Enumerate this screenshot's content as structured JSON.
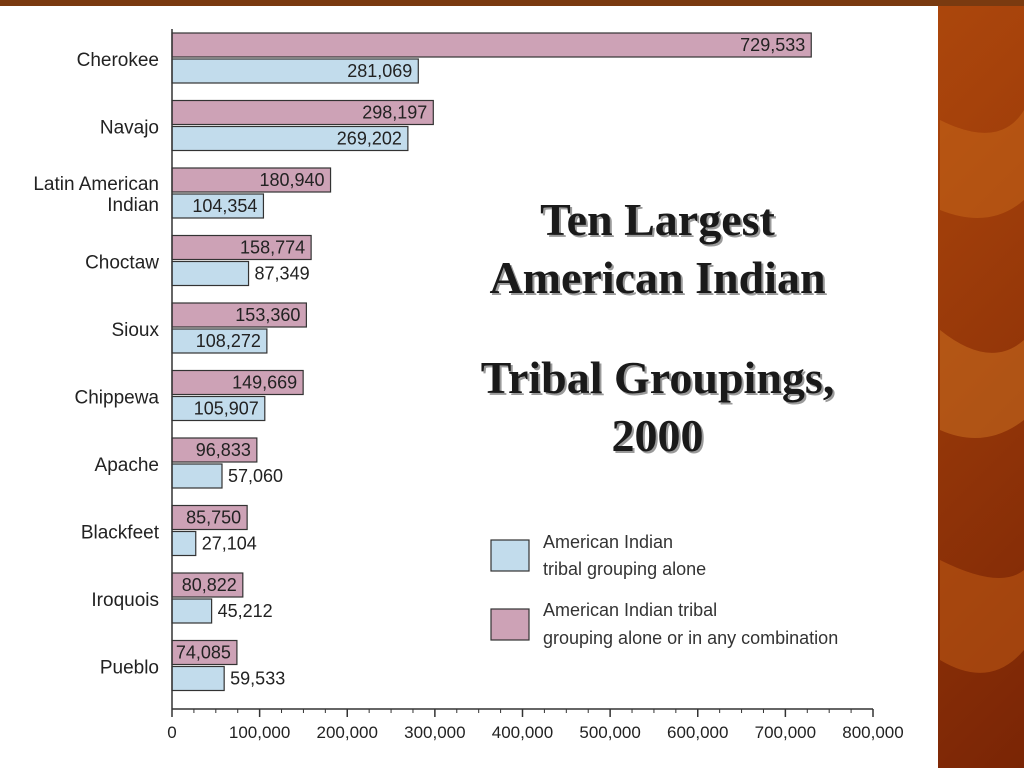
{
  "title": {
    "line1": "Ten Largest",
    "line2": "American Indian",
    "line3": "Tribal Groupings,",
    "line4": "2000"
  },
  "colors": {
    "alone": "#c2dcec",
    "combination": "#cda2b6",
    "stroke": "#333333",
    "background_accent": "#b9520f"
  },
  "chart_data": {
    "type": "bar",
    "orientation": "horizontal",
    "categories": [
      "Cherokee",
      "Navajo",
      "Latin American Indian",
      "Choctaw",
      "Sioux",
      "Chippewa",
      "Apache",
      "Blackfeet",
      "Iroquois",
      "Pueblo"
    ],
    "category_lines": [
      [
        "Cherokee"
      ],
      [
        "Navajo"
      ],
      [
        "Latin American",
        "Indian"
      ],
      [
        "Choctaw"
      ],
      [
        "Sioux"
      ],
      [
        "Chippewa"
      ],
      [
        "Apache"
      ],
      [
        "Blackfeet"
      ],
      [
        "Iroquois"
      ],
      [
        "Pueblo"
      ]
    ],
    "series": [
      {
        "name": "American Indian tribal grouping alone or in any combination",
        "values": [
          729533,
          298197,
          180940,
          158774,
          153360,
          149669,
          96833,
          85750,
          80822,
          74085
        ],
        "labels": [
          "729,533",
          "298,197",
          "180,940",
          "158,774",
          "153,360",
          "149,669",
          "96,833",
          "85,750",
          "80,822",
          "74,085"
        ]
      },
      {
        "name": "American Indian tribal grouping alone",
        "values": [
          281069,
          269202,
          104354,
          87349,
          108272,
          105907,
          57060,
          27104,
          45212,
          59533
        ],
        "labels": [
          "281,069",
          "269,202",
          "104,354",
          "87,349",
          "108,272",
          "105,907",
          "57,060",
          "27,104",
          "45,212",
          "59,533"
        ]
      }
    ],
    "xlim": [
      0,
      800000
    ],
    "x_ticks": [
      0,
      100000,
      200000,
      300000,
      400000,
      500000,
      600000,
      700000,
      800000
    ],
    "x_tick_labels": [
      "0",
      "100,000",
      "200,000",
      "300,000",
      "400,000",
      "500,000",
      "600,000",
      "700,000",
      "800,000"
    ],
    "legend": {
      "position": "lower-right",
      "items": [
        {
          "series": "alone",
          "lines": [
            "American Indian",
            "tribal grouping alone"
          ]
        },
        {
          "series": "combination",
          "lines": [
            "American Indian tribal",
            "grouping alone or in any combination"
          ]
        }
      ]
    },
    "grid": false
  }
}
